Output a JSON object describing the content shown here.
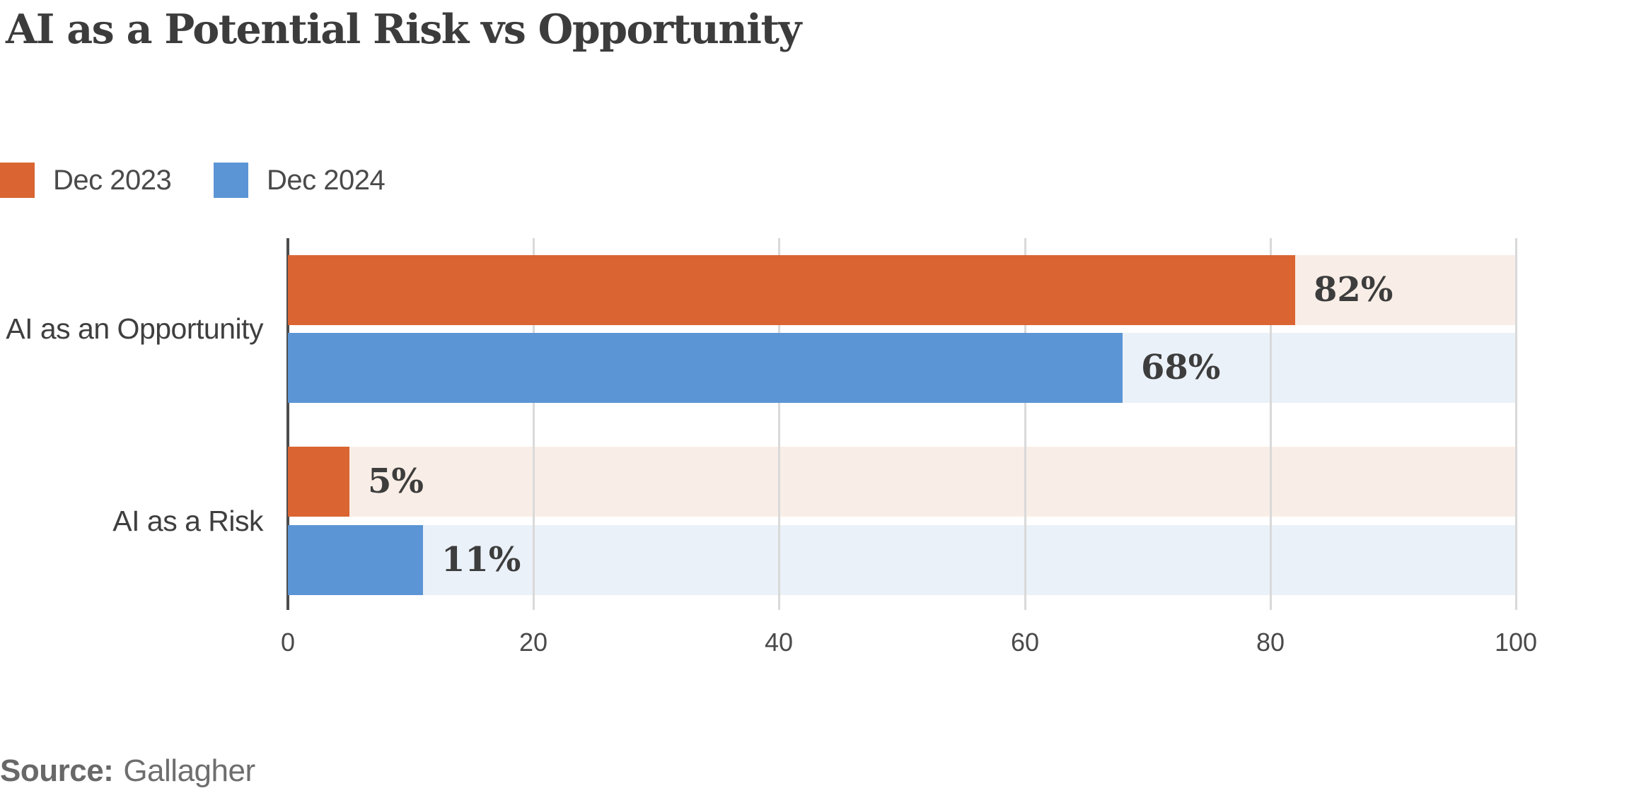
{
  "header": {
    "title": "AI as a Potential Risk vs Opportunity"
  },
  "legend": {
    "items": [
      {
        "label": "Dec 2023",
        "color": "#DA6532"
      },
      {
        "label": "Dec 2024",
        "color": "#5B95D5"
      }
    ]
  },
  "footer": {
    "source_label": "Source:",
    "source_value": "Gallagher"
  },
  "colors": {
    "orange": "#DA6532",
    "blue": "#5B95D5",
    "orange_track": "#F9EEE7",
    "blue_track": "#EBF1F9",
    "gridline": "#D9D9D9",
    "axis_line": "#4D4D4D",
    "text_dark": "#3D3D3D"
  },
  "chart_data": {
    "type": "bar",
    "orientation": "horizontal",
    "title": "AI as a Potential Risk vs Opportunity",
    "categories": [
      "AI as an Opportunity",
      "AI as a Risk"
    ],
    "series": [
      {
        "name": "Dec 2023",
        "color": "#DA6532",
        "track_color": "#F9EEE7",
        "values": [
          82,
          5
        ],
        "value_labels": [
          "82%",
          "5%"
        ]
      },
      {
        "name": "Dec 2024",
        "color": "#5B95D5",
        "track_color": "#EBF1F9",
        "values": [
          68,
          11
        ],
        "value_labels": [
          "68%",
          "11%"
        ]
      }
    ],
    "xlim": [
      0,
      100
    ],
    "x_ticks": [
      "0",
      "20",
      "40",
      "60",
      "80",
      "100"
    ],
    "x_tick_values": [
      0,
      20,
      40,
      60,
      80,
      100
    ],
    "grid": "vertical",
    "legend_position": "top-left",
    "value_label_position": "outside-end",
    "track_to_max": true,
    "source": "Gallagher"
  }
}
